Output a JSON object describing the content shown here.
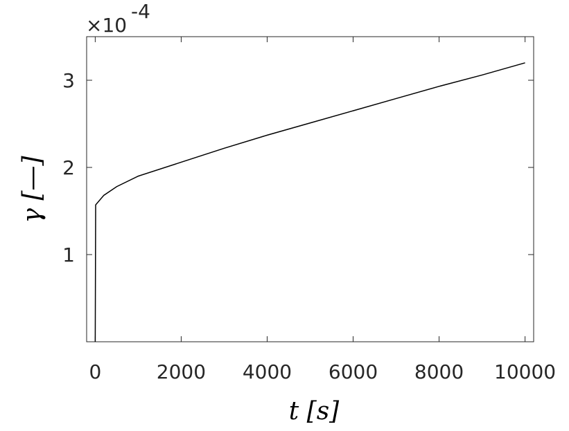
{
  "chart_data": {
    "type": "line",
    "x_label": "t [s]",
    "y_label": "γ [—]",
    "y_multiplier": "×10",
    "y_exponent": "-4",
    "x": [
      0,
      10,
      200,
      500,
      1000,
      2000,
      3000,
      4000,
      5000,
      6000,
      7000,
      8000,
      9000,
      10000
    ],
    "series": [
      {
        "color": "#000000",
        "values": [
          0,
          1.57,
          1.68,
          1.78,
          1.9,
          2.06,
          2.22,
          2.37,
          2.51,
          2.65,
          2.79,
          2.93,
          3.06,
          3.2
        ]
      }
    ],
    "xlim": [
      -200,
      10200
    ],
    "ylim": [
      0,
      3.5
    ],
    "xticks": [
      0,
      2000,
      4000,
      6000,
      8000,
      10000
    ],
    "yticks": [
      1,
      2,
      3
    ],
    "grid": false
  }
}
